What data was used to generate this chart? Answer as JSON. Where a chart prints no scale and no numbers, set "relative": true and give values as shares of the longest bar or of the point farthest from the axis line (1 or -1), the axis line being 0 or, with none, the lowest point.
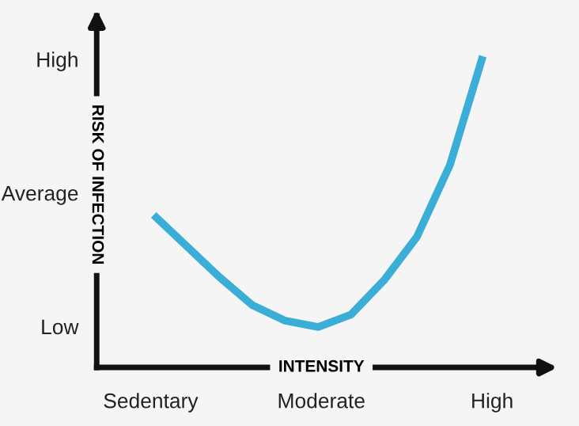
{
  "chart_data": {
    "type": "line",
    "relative": true,
    "xlabel": "INTENSITY",
    "ylabel": "RISK OF INFECTION",
    "categories": [
      null,
      null,
      null,
      null,
      null,
      null,
      null,
      null,
      null,
      null,
      null
    ],
    "series": [
      {
        "color": "#3aaed6",
        "values": [
          0.49,
          0.39,
          0.29,
          0.2,
          0.15,
          0.13,
          0.17,
          0.28,
          0.42,
          0.65,
          1.0
        ]
      }
    ],
    "annotations": [
      "Sedentary",
      "Moderate",
      "High",
      "Low",
      "Average",
      "High"
    ],
    "grid": false,
    "legend": false,
    "marker": "none",
    "line_style": "solid"
  }
}
